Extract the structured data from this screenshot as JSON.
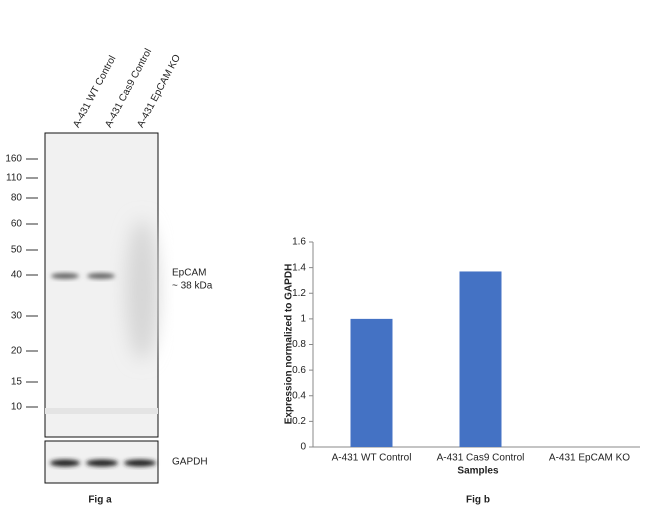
{
  "blot": {
    "lanes": [
      "A-431 WT Control",
      "A-431 Cas9 Control",
      "A-431 EpCAM KO"
    ],
    "markers": [
      160,
      110,
      80,
      60,
      50,
      40,
      30,
      20,
      15,
      10
    ],
    "band_label": "EpCAM",
    "band_size": "~ 38 kDa",
    "loading_label": "GAPDH",
    "caption": "Fig a"
  },
  "chart_data": {
    "type": "bar",
    "categories": [
      "A-431 WT Control",
      "A-431 Cas9 Control",
      "A-431 EpCAM KO"
    ],
    "values": [
      1,
      1.37,
      0
    ],
    "color": "#4472c4",
    "ylim": [
      0,
      1.6
    ],
    "yticks": [
      0,
      0.2,
      0.4,
      0.6,
      0.8,
      1,
      1.2,
      1.4,
      1.6
    ],
    "ylabel": "Expression normalized to GAPDH",
    "xlabel": "Samples",
    "caption": "Fig b"
  }
}
